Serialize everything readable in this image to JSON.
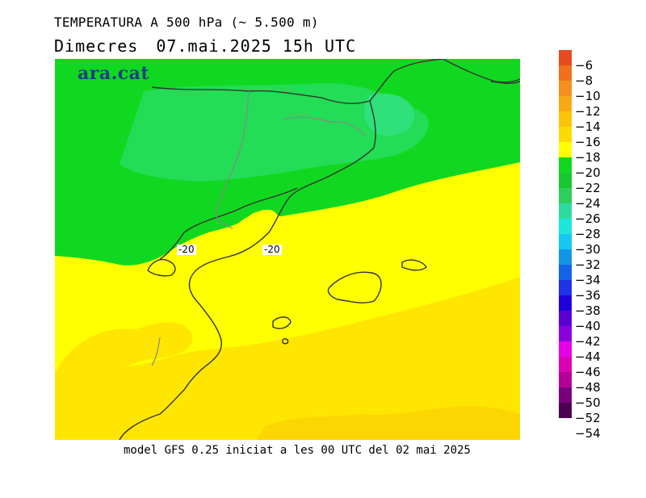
{
  "header": {
    "title": "TEMPERATURA A 500 hPa (~ 5.500 m)",
    "day": "Dimecres",
    "datetime": "07.mai.2025 15h UTC"
  },
  "logo": "ara.cat",
  "footer": "model GFS 0.25 iniciat a les 00 UTC del 02 mai 2025",
  "contour_labels": [
    "-20",
    "-20"
  ],
  "legend": {
    "colors": [
      "#e64b1e",
      "#f0701e",
      "#f5901e",
      "#f8aa14",
      "#fbc40a",
      "#fcdc00",
      "#ffff00",
      "#10d820",
      "#18c832",
      "#2dcf5c",
      "#2ddba0",
      "#1ee6dc",
      "#14c8f0",
      "#1496e6",
      "#1464e6",
      "#1e32e6",
      "#1e00dc",
      "#5a00d2",
      "#8c00dc",
      "#e600e6",
      "#dc00b4",
      "#b40096",
      "#78007d",
      "#4b0050"
    ],
    "labels": [
      "−6",
      "−8",
      "−10",
      "−12",
      "−14",
      "−16",
      "−18",
      "−20",
      "−22",
      "−24",
      "−26",
      "−28",
      "−30",
      "−32",
      "−34",
      "−36",
      "−38",
      "−40",
      "−42",
      "−44",
      "−46",
      "−48",
      "−50",
      "−52",
      "−54"
    ]
  },
  "map_colors": {
    "green_dark": "#10d820",
    "green_mid": "#22dd55",
    "green_light": "#30e07a",
    "yellow": "#ffff00",
    "yellow_orange": "#ffe600",
    "orange_light": "#fcd600",
    "coast": "#333333",
    "border": "#888888"
  }
}
